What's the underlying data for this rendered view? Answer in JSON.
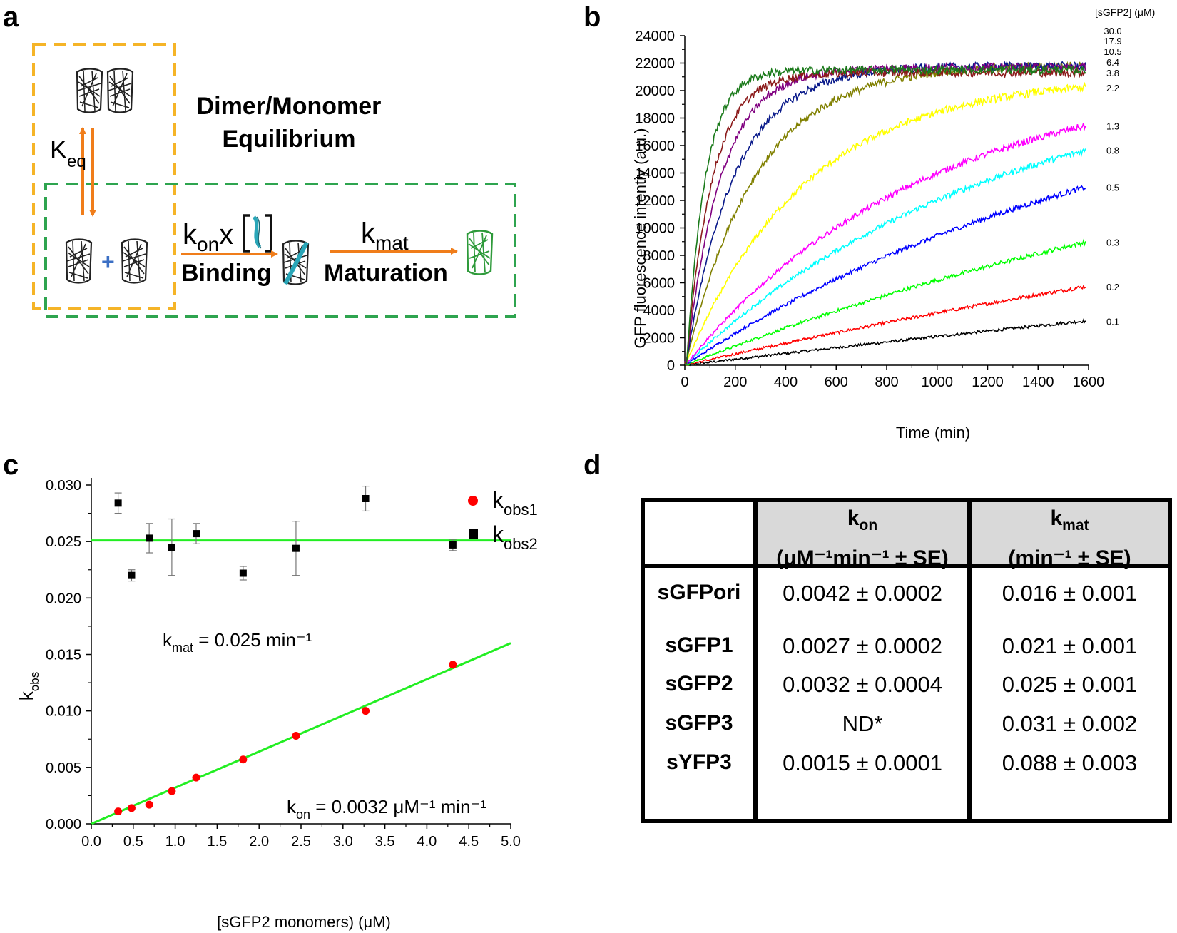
{
  "panels": {
    "a": "a",
    "b": "b",
    "c": "c",
    "d": "d"
  },
  "panel_a": {
    "keq_main": "K",
    "keq_sub": "eq",
    "plus": "+",
    "kon_main": "k",
    "kon_sub": "on",
    "kon_x": "x",
    "binding": "Binding",
    "kmat_main": "k",
    "kmat_sub": "mat",
    "maturation": "Maturation",
    "title_line1": "Dimer/Monomer",
    "title_line2": "Equilibrium",
    "colors": {
      "yellow_box": "#f5b427",
      "green_box": "#2ea44f",
      "arrow": "#f07d1a",
      "plus": "#3b6fc4",
      "peptide": "#2aa6b8",
      "mature": "#2e9a3a"
    }
  },
  "chart_data": [
    {
      "panel": "b",
      "type": "line",
      "xlabel": "Time (min)",
      "ylabel": "GFP fluorescence intentiy (a.u.)",
      "xlim": [
        0,
        1600
      ],
      "ylim": [
        0,
        24000
      ],
      "xticks": [
        0,
        200,
        400,
        600,
        800,
        1000,
        1200,
        1400,
        1600
      ],
      "yticks": [
        0,
        2000,
        4000,
        6000,
        8000,
        10000,
        12000,
        14000,
        16000,
        18000,
        20000,
        22000,
        24000
      ],
      "legend_title": "[sGFP2] (μM)",
      "series": [
        {
          "name": "30.0",
          "color": "#1a7a1a",
          "plateau": 21500,
          "rate": 0.0135,
          "lag": 18
        },
        {
          "name": "17.9",
          "color": "#8b1a1a",
          "plateau": 21300,
          "rate": 0.0098,
          "lag": 15
        },
        {
          "name": "10.5",
          "color": "#800080",
          "plateau": 21700,
          "rate": 0.0072,
          "lag": 12
        },
        {
          "name": "6.4",
          "color": "#0a1a8a",
          "plateau": 21800,
          "rate": 0.0052,
          "lag": 10
        },
        {
          "name": "3.8",
          "color": "#808000",
          "plateau": 21900,
          "rate": 0.0036,
          "lag": 8
        },
        {
          "name": "2.2",
          "color": "#ffff00",
          "plateau": 21000,
          "rate": 0.0021,
          "lag": 6
        },
        {
          "name": "1.3",
          "color": "#ff00ff",
          "plateau": 21500,
          "rate": 0.00105,
          "lag": 4
        },
        {
          "name": "0.8",
          "color": "#00ffff",
          "plateau": 21500,
          "rate": 0.00082,
          "lag": 3
        },
        {
          "name": "0.5",
          "color": "#0000ff",
          "plateau": 22000,
          "rate": 0.00056,
          "lag": 2
        },
        {
          "name": "0.3",
          "color": "#00ff00",
          "plateau": 22000,
          "rate": 0.00033,
          "lag": 1
        },
        {
          "name": "0.2",
          "color": "#ff0000",
          "plateau": 22000,
          "rate": 0.00019,
          "lag": 0
        },
        {
          "name": "0.1",
          "color": "#000000",
          "plateau": 22000,
          "rate": 0.0001,
          "lag": 0
        }
      ]
    },
    {
      "panel": "c",
      "type": "scatter",
      "xlabel": "[sGFP2 monomers) (μM)",
      "ylabel_main": "k",
      "ylabel_sub": "obs",
      "xlim": [
        0,
        5
      ],
      "ylim": [
        0,
        0.03
      ],
      "xticks": [
        "0.0",
        "0.5",
        "1.0",
        "1.5",
        "2.0",
        "2.5",
        "3.0",
        "3.5",
        "4.0",
        "4.5",
        "5.0"
      ],
      "yticks": [
        "0.000",
        "0.005",
        "0.010",
        "0.015",
        "0.020",
        "0.025",
        "0.030"
      ],
      "series": [
        {
          "name_main": "k",
          "name_sub": "obs1",
          "marker": "circle",
          "color": "#ff0000",
          "x": [
            0.32,
            0.48,
            0.69,
            0.96,
            1.25,
            1.81,
            2.44,
            3.27,
            4.31
          ],
          "y": [
            0.0011,
            0.0014,
            0.0017,
            0.0029,
            0.0041,
            0.0057,
            0.0078,
            0.01,
            0.0141
          ]
        },
        {
          "name_main": "k",
          "name_sub": "obs2",
          "marker": "square",
          "color": "#000000",
          "x": [
            0.32,
            0.48,
            0.69,
            0.96,
            1.25,
            1.81,
            2.44,
            3.27,
            4.31
          ],
          "y": [
            0.0284,
            0.022,
            0.0253,
            0.0245,
            0.0257,
            0.0222,
            0.0244,
            0.0288,
            0.0247
          ],
          "err": [
            0.0009,
            0.0005,
            0.0013,
            0.0025,
            0.0009,
            0.0006,
            0.0024,
            0.0011,
            0.0005
          ]
        }
      ],
      "fits": [
        {
          "type": "horizontal",
          "y": 0.0251,
          "color": "#22ee22"
        },
        {
          "type": "linear",
          "slope": 0.0032,
          "intercept": 0,
          "color": "#22ee22"
        }
      ],
      "annotations": {
        "kmat_main": "k",
        "kmat_sub": "mat",
        "kmat_text": " = 0.025 min⁻¹",
        "kon_main": "k",
        "kon_sub": "on",
        "kon_text": " = 0.0032 μM⁻¹ min⁻¹"
      }
    },
    {
      "panel": "d",
      "type": "table",
      "headers": [
        {
          "main": "k",
          "sub": "on",
          "line2": "(μM⁻¹min⁻¹ ± SE)"
        },
        {
          "main": "k",
          "sub": "mat",
          "line2": "(min⁻¹ ± SE)"
        }
      ],
      "rows": [
        {
          "name": "sGFPori",
          "kon": "0.0042 ± 0.0002",
          "kmat": "0.016 ± 0.001"
        },
        {
          "name": "sGFP1",
          "kon": "0.0027 ± 0.0002",
          "kmat": "0.021 ± 0.001"
        },
        {
          "name": "sGFP2",
          "kon": "0.0032 ± 0.0004",
          "kmat": "0.025 ± 0.001"
        },
        {
          "name": "sGFP3",
          "kon": "ND*",
          "kmat": "0.031 ± 0.002"
        },
        {
          "name": "sYFP3",
          "kon": "0.0015 ± 0.0001",
          "kmat": "0.088 ± 0.003"
        }
      ]
    }
  ]
}
